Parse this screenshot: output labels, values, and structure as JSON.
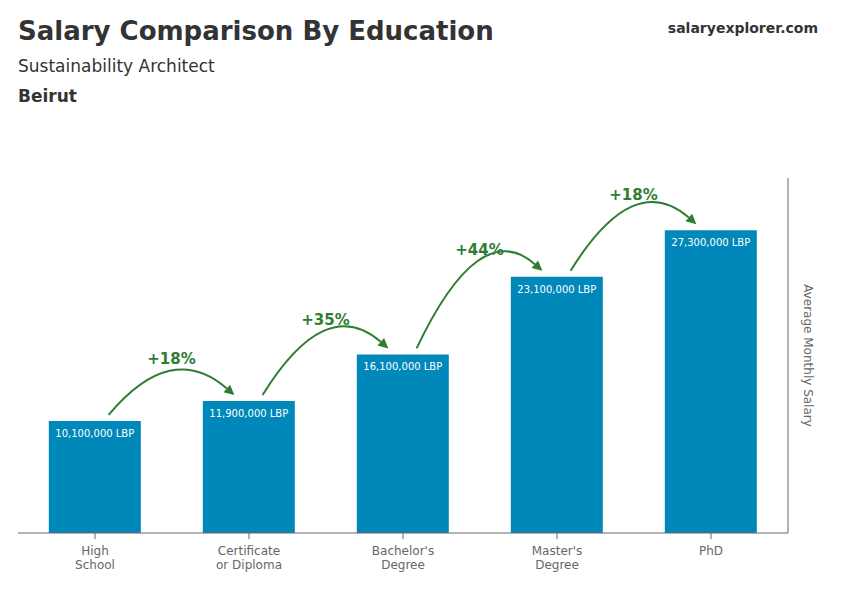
{
  "chart_data": {
    "type": "bar",
    "title": "Salary Comparison By Education",
    "subtitle": [
      "Sustainability Architect",
      "Beirut"
    ],
    "ylabel": "Average Monthly Salary",
    "categories": [
      "High\nSchool",
      "Certificate\nor Diploma",
      "Bachelor's\nDegree",
      "Master's\nDegree",
      "PhD"
    ],
    "values": [
      10100000,
      11900000,
      16100000,
      23100000,
      27300000
    ],
    "value_labels": [
      "10,100,000 LBP",
      "11,900,000 LBP",
      "16,100,000 LBP",
      "23,100,000 LBP",
      "27,300,000 LBP"
    ],
    "data_labels": true,
    "annotations": [
      "+18%",
      "+35%",
      "+44%",
      "+18%",
      "salaryexplorer.com"
    ],
    "color": "#0088bb",
    "ylim": [
      0,
      32000000
    ],
    "tick_labels": "x",
    "grid": false
  }
}
